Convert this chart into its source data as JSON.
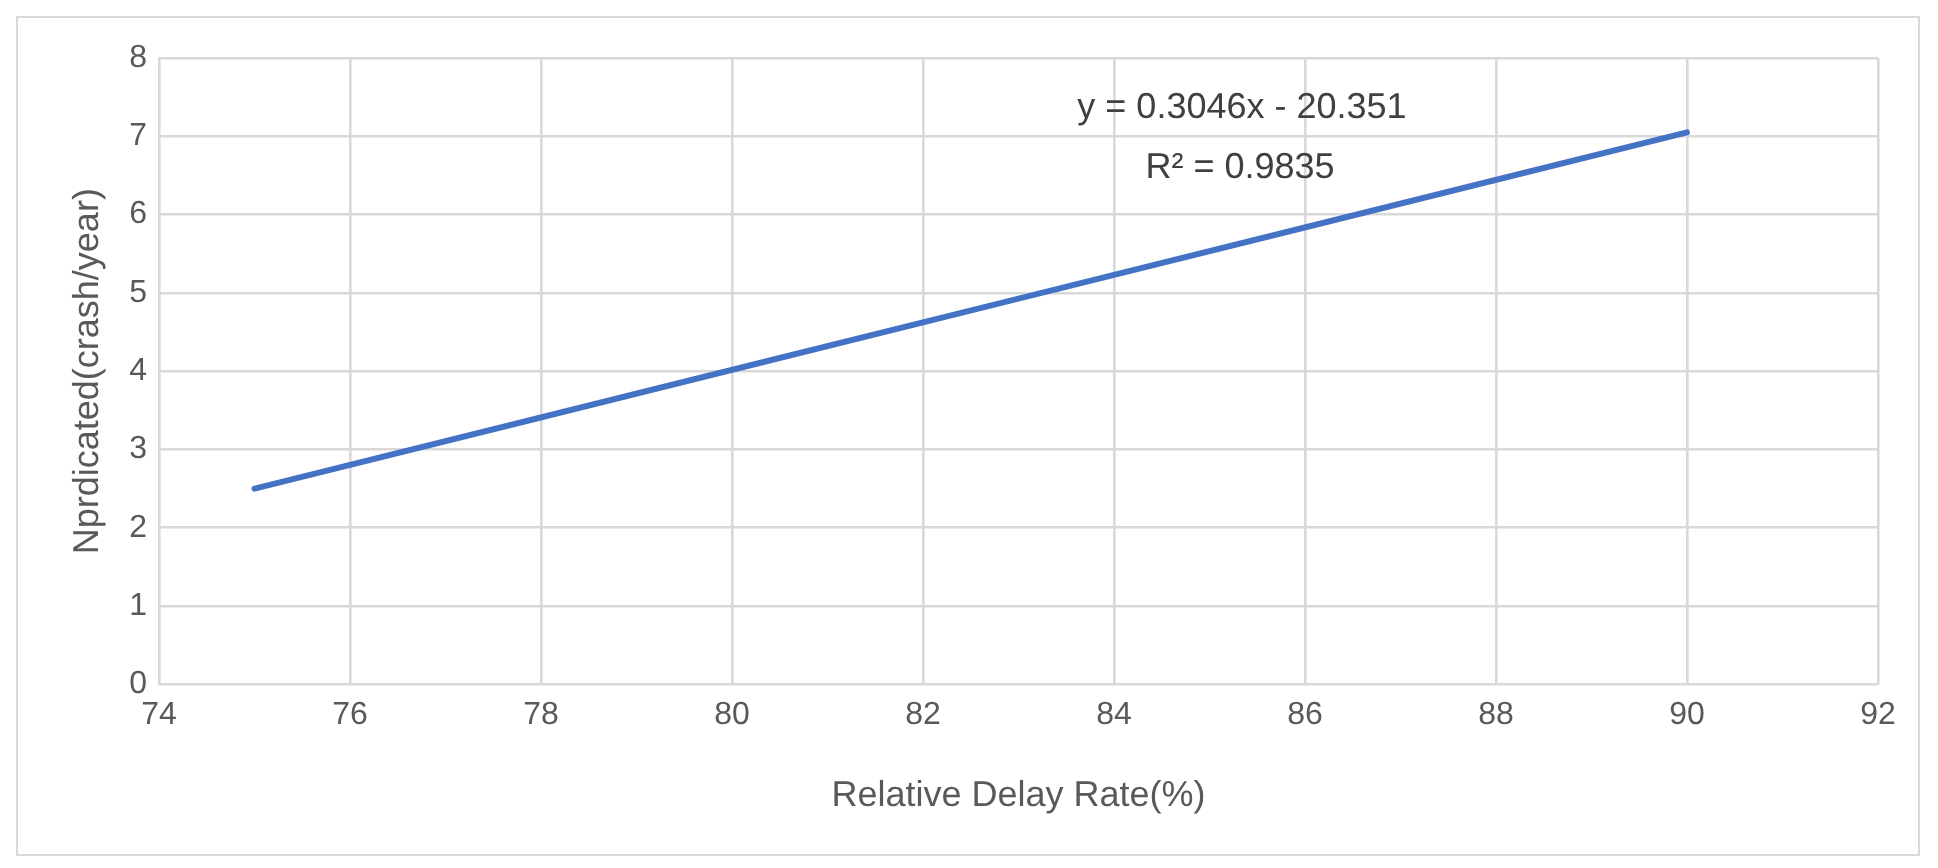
{
  "chart_data": {
    "type": "line",
    "xlabel": "Relative Delay Rate(%)",
    "ylabel": "Nprdicated(crash/year)",
    "x": [
      75,
      90
    ],
    "series": [
      {
        "color": "#4472c4",
        "values": [
          2.5,
          7.05
        ]
      }
    ],
    "xlim": [
      74,
      92
    ],
    "xticks": [
      74,
      76,
      78,
      80,
      82,
      84,
      86,
      88,
      90,
      92
    ],
    "ylim": [
      0,
      8
    ],
    "yticks": [
      0,
      1,
      2,
      3,
      4,
      5,
      6,
      7,
      8
    ],
    "grid": true,
    "marker": "none",
    "line_style": "solid",
    "annotations": [
      "y = 0.3046x - 20.351",
      "R² = 0.9835"
    ]
  }
}
